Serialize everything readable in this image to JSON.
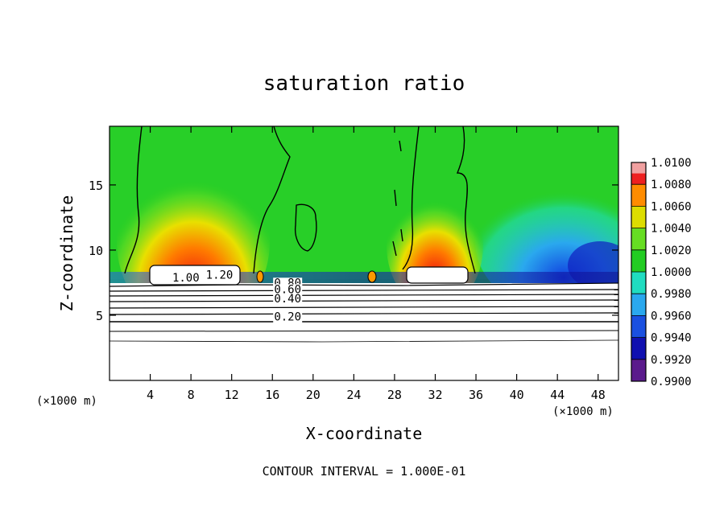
{
  "chart_data": {
    "type": "heatmap",
    "title": "saturation ratio",
    "xlabel": "X-coordinate",
    "ylabel": "Z-coordinate",
    "x_unit": "(×1000 m)",
    "y_unit": "(×1000 m)",
    "xlim": [
      0,
      50
    ],
    "ylim": [
      0,
      19.5
    ],
    "x_ticks": [
      4,
      8,
      12,
      16,
      20,
      24,
      28,
      32,
      36,
      40,
      44,
      48
    ],
    "y_ticks": [
      5,
      10,
      15
    ],
    "colorbar": {
      "ticks": [
        "0.9900",
        "0.9920",
        "0.9940",
        "0.9960",
        "0.9980",
        "1.0000",
        "1.0020",
        "1.0040",
        "1.0060",
        "1.0080",
        "1.0100"
      ],
      "colors": [
        "#5a1a8c",
        "#1010b0",
        "#1a50e0",
        "#2aa8ee",
        "#20dcc0",
        "#22cc22",
        "#66dd22",
        "#dddd00",
        "#ff8c00",
        "#ee2020",
        "#f0a0a0"
      ]
    },
    "contour_labels": [
      {
        "text": "1.00",
        "x": 7.5,
        "z": 7.6
      },
      {
        "text": "1.20",
        "x": 10.8,
        "z": 7.8
      },
      {
        "text": "0.80",
        "x": 17.5,
        "z": 7.2
      },
      {
        "text": "0.60",
        "x": 17.5,
        "z": 6.7
      },
      {
        "text": "0.40",
        "x": 17.5,
        "z": 6.0
      },
      {
        "text": "0.20",
        "x": 17.5,
        "z": 4.6
      }
    ],
    "contour_interval": "CONTOUR INTERVAL = 1.000E-01"
  }
}
